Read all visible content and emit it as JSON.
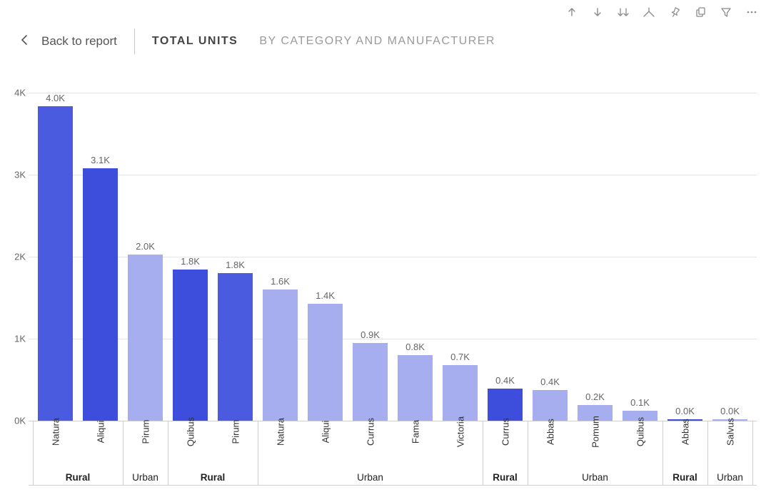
{
  "nav": {
    "back_label": "Back to report",
    "title": "TOTAL UNITS",
    "subtitle": "BY CATEGORY AND MANUFACTURER"
  },
  "toolbar_icons": [
    "arrow-up-icon",
    "arrow-down-icon",
    "double-arrow-down-icon",
    "fork-icon",
    "pin-icon",
    "copy-icon",
    "filter-icon",
    "more-icon"
  ],
  "chart": {
    "type": "bar",
    "ylim": [
      0,
      4000
    ],
    "ytick_step": 1000,
    "ytick_labels": [
      "0K",
      "1K",
      "2K",
      "3K",
      "4K"
    ],
    "grid_color": "#e5e5e5",
    "axis_color": "#cfcfcf",
    "background_color": "#ffffff",
    "data_label_color": "#666666",
    "data_label_fontsize": 13,
    "xlabel_fontsize": 13,
    "group_label_fontsize": 13.5,
    "colors": {
      "darker": "#3d4edc",
      "dark": "#4a5be0",
      "light": "#a6aef0"
    },
    "bars": [
      {
        "x": "Natura",
        "value": 3980,
        "label": "4.0K",
        "shade": "dark"
      },
      {
        "x": "Aliqui",
        "value": 3080,
        "label": "3.1K",
        "shade": "darker"
      },
      {
        "x": "Pirum",
        "value": 2030,
        "label": "2.0K",
        "shade": "light"
      },
      {
        "x": "Quibus",
        "value": 1840,
        "label": "1.8K",
        "shade": "darker"
      },
      {
        "x": "Pirum",
        "value": 1800,
        "label": "1.8K",
        "shade": "dark"
      },
      {
        "x": "Natura",
        "value": 1600,
        "label": "1.6K",
        "shade": "light"
      },
      {
        "x": "Aliqui",
        "value": 1430,
        "label": "1.4K",
        "shade": "light"
      },
      {
        "x": "Currus",
        "value": 950,
        "label": "0.9K",
        "shade": "light"
      },
      {
        "x": "Fama",
        "value": 800,
        "label": "0.8K",
        "shade": "light"
      },
      {
        "x": "Victoria",
        "value": 680,
        "label": "0.7K",
        "shade": "light"
      },
      {
        "x": "Currus",
        "value": 390,
        "label": "0.4K",
        "shade": "darker"
      },
      {
        "x": "Abbas",
        "value": 370,
        "label": "0.4K",
        "shade": "light"
      },
      {
        "x": "Pomum",
        "value": 190,
        "label": "0.2K",
        "shade": "light"
      },
      {
        "x": "Quibus",
        "value": 120,
        "label": "0.1K",
        "shade": "light"
      },
      {
        "x": "Abbas",
        "value": 20,
        "label": "0.0K",
        "shade": "darker"
      },
      {
        "x": "Salvus",
        "value": 15,
        "label": "0.0K",
        "shade": "light"
      }
    ],
    "groups": [
      {
        "label": "Rural",
        "span": 2,
        "bold": true
      },
      {
        "label": "Urban",
        "span": 1,
        "bold": false
      },
      {
        "label": "Rural",
        "span": 2,
        "bold": true
      },
      {
        "label": "Urban",
        "span": 5,
        "bold": false
      },
      {
        "label": "Rural",
        "span": 1,
        "bold": true
      },
      {
        "label": "Urban",
        "span": 3,
        "bold": false
      },
      {
        "label": "Rural",
        "span": 1,
        "bold": true
      },
      {
        "label": "Urban",
        "span": 1,
        "bold": false
      }
    ]
  }
}
